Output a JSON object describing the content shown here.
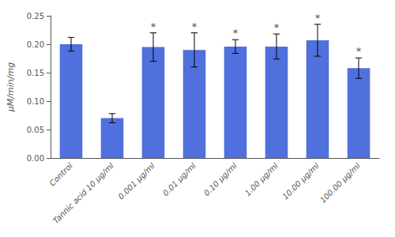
{
  "chart_data": {
    "type": "bar",
    "categories": [
      "Control",
      "Tannic acid 10 μg/ml",
      "0.001 μg/ml",
      "0.01 μg/ml",
      "0.10 μg/ml",
      "1.00 μg/ml",
      "10.00 μg/ml",
      "100.00 μg/ml"
    ],
    "values": [
      0.2,
      0.07,
      0.195,
      0.19,
      0.196,
      0.196,
      0.207,
      0.158
    ],
    "errors": [
      0.012,
      0.008,
      0.025,
      0.03,
      0.012,
      0.022,
      0.028,
      0.018
    ],
    "annotations": [
      {
        "category": "0.001 μg/ml",
        "text": "*"
      },
      {
        "category": "0.01 μg/ml",
        "text": "*"
      },
      {
        "category": "0.10 μg/ml",
        "text": "*"
      },
      {
        "category": "1.00 μg/ml",
        "text": "*"
      },
      {
        "category": "10.00 μg/ml",
        "text": "*"
      },
      {
        "category": "100.00 μg/ml",
        "text": "*"
      }
    ],
    "ylabel": "μM/min/mg",
    "ylim": [
      0,
      0.25
    ],
    "yticks": [
      {
        "value": 0,
        "label": "0.00"
      },
      0.05,
      {
        "value": 0.1,
        "label": "0.10"
      },
      0.15,
      {
        "value": 0.2,
        "label": "0.20"
      },
      0.25
    ],
    "grid": false
  }
}
